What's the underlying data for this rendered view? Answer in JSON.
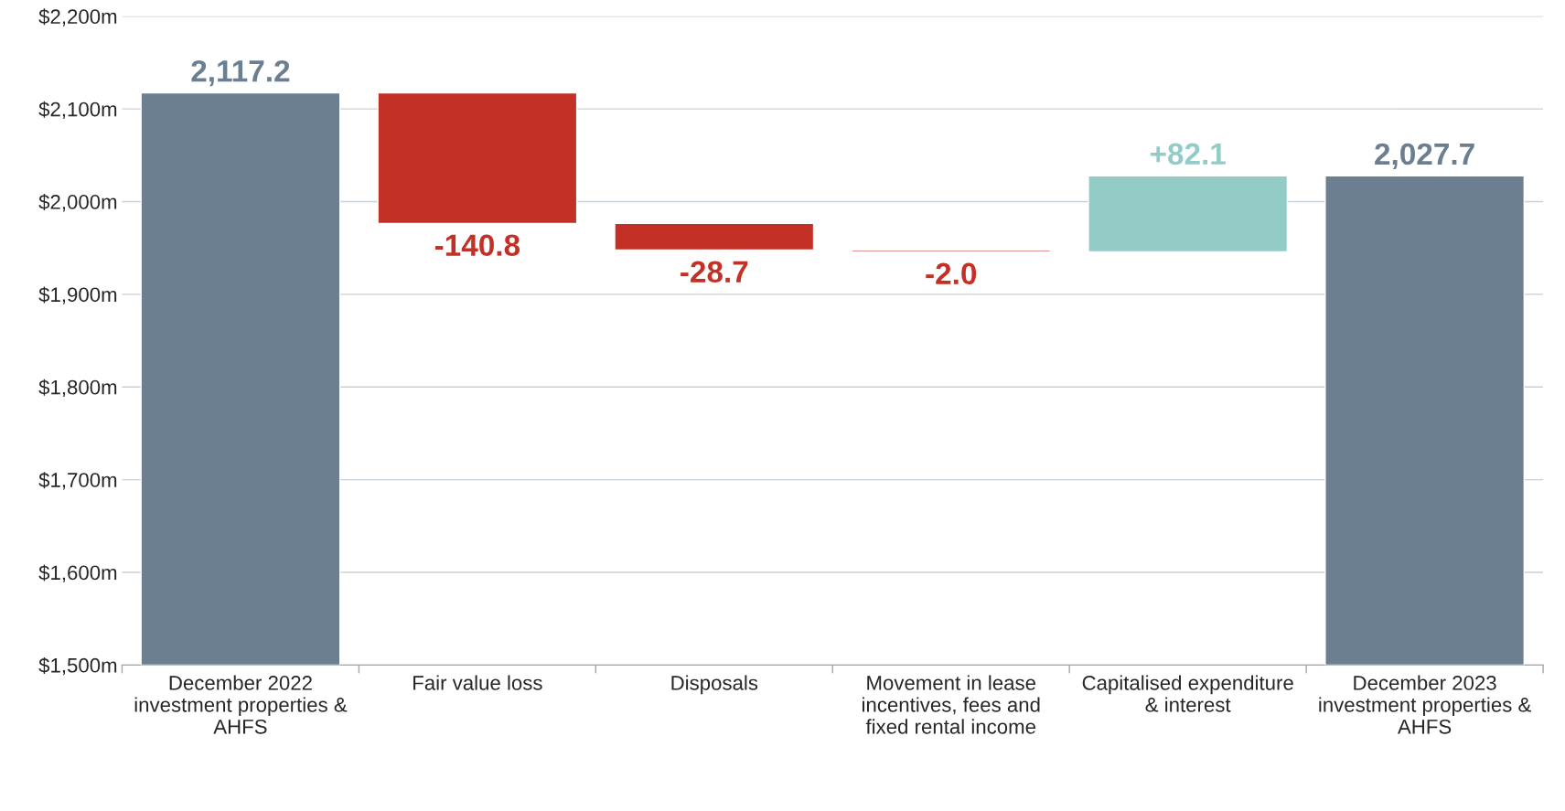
{
  "chart_data": {
    "type": "bar",
    "categories": [
      "December 2022 investment properties & AHFS",
      "Fair value loss",
      "Disposals",
      "Movement in lease incentives, fees and fixed rental income",
      "Capitalised expenditure & interest",
      "December 2023 investment properties & AHFS"
    ],
    "values": [
      2117.2,
      -140.8,
      -28.7,
      -2.0,
      82.1,
      2027.7
    ],
    "base": [
      null,
      2117.2,
      1976.4,
      1947.7,
      1945.7,
      null
    ],
    "colors": [
      "#6b7f91",
      "#c33025",
      "#c33025",
      "#c33025",
      "#93cbc7",
      "#6b7f91"
    ],
    "value_labels": [
      "2,117.2",
      "-140.8",
      "-28.7",
      "-2.0",
      "+82.1",
      "2,027.7"
    ],
    "ylim": [
      1500,
      2200
    ],
    "yticks": [
      {
        "value": 1500,
        "label": "$1,500m"
      },
      {
        "value": 1600,
        "label": "$1,600m"
      },
      {
        "value": 1700,
        "label": "$1,700m"
      },
      {
        "value": 1800,
        "label": "$1,800m"
      },
      {
        "value": 1900,
        "label": "$1,900m"
      },
      {
        "value": 2000,
        "label": "$2,000m"
      },
      {
        "value": 2100,
        "label": "$2,100m"
      },
      {
        "value": 2200,
        "label": "$2,200m"
      }
    ],
    "grid": "y"
  }
}
